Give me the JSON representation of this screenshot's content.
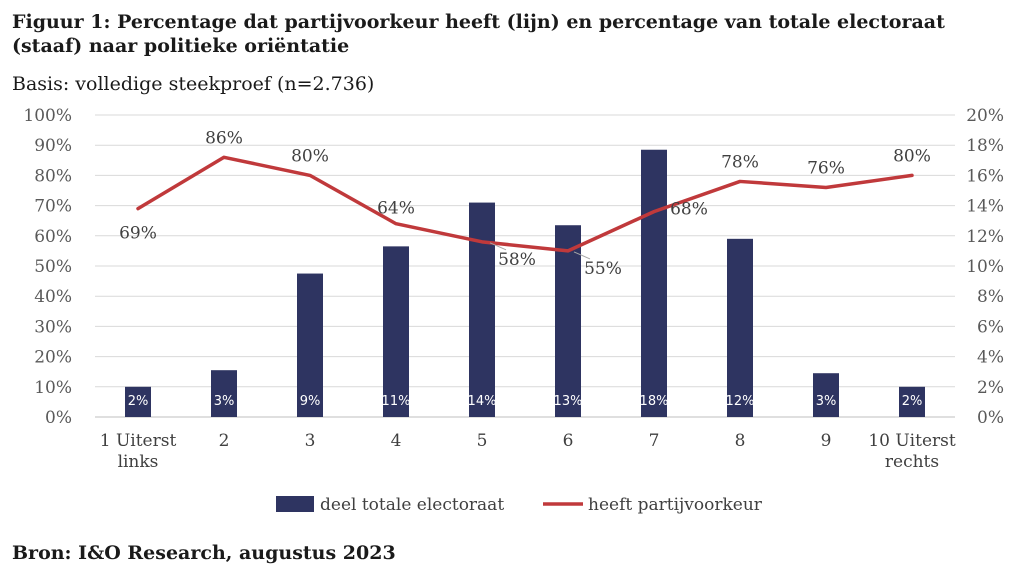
{
  "title": "Figuur 1: Percentage dat partijvoorkeur heeft (lijn) en percentage van totale electoraat (staaf) naar politieke oriëntatie",
  "subtitle": "Basis: volledige steekproef (n=2.736)",
  "source": "Bron: I&O Research, augustus 2023",
  "colors": {
    "bar": "#2e3461",
    "line": "#c0393b",
    "grid": "#d9d9d9",
    "axis": "#bfbfbf"
  },
  "chart_data": {
    "type": "bar+line",
    "categories": [
      "1 Uiterst links",
      "2",
      "3",
      "4",
      "5",
      "6",
      "7",
      "8",
      "9",
      "10 Uiterst rechts"
    ],
    "category_lines": [
      [
        "1 Uiterst",
        "links"
      ],
      [
        "2"
      ],
      [
        "3"
      ],
      [
        "4"
      ],
      [
        "5"
      ],
      [
        "6"
      ],
      [
        "7"
      ],
      [
        "8"
      ],
      [
        "9"
      ],
      [
        "10 Uiterst",
        "rechts"
      ]
    ],
    "series": [
      {
        "name": "deel totale electoraat",
        "type": "bar",
        "axis": "right",
        "values": [
          2,
          3,
          9,
          11,
          14,
          13,
          18,
          12,
          3,
          2
        ],
        "bar_heights_estimate": [
          2.0,
          3.1,
          9.5,
          11.3,
          14.2,
          12.7,
          17.7,
          11.8,
          2.9,
          2.0
        ],
        "labels": [
          "2%",
          "3%",
          "9%",
          "11%",
          "14%",
          "13%",
          "18%",
          "12%",
          "3%",
          "2%"
        ]
      },
      {
        "name": "heeft partijvoorkeur",
        "type": "line",
        "axis": "left",
        "values": [
          69,
          86,
          80,
          64,
          58,
          55,
          68,
          78,
          76,
          80
        ],
        "labels": [
          "69%",
          "86%",
          "80%",
          "64%",
          "58%",
          "55%",
          "68%",
          "78%",
          "76%",
          "80%"
        ]
      }
    ],
    "y_left": {
      "min": 0,
      "max": 100,
      "ticks": [
        "0%",
        "10%",
        "20%",
        "30%",
        "40%",
        "50%",
        "60%",
        "70%",
        "80%",
        "90%",
        "100%"
      ]
    },
    "y_right": {
      "min": 0,
      "max": 20,
      "ticks": [
        "0%",
        "2%",
        "4%",
        "6%",
        "8%",
        "10%",
        "12%",
        "14%",
        "16%",
        "18%",
        "20%"
      ]
    },
    "legend": {
      "position": "bottom",
      "items": [
        "deel totale electoraat",
        "heeft partijvoorkeur"
      ]
    },
    "grid": true
  }
}
